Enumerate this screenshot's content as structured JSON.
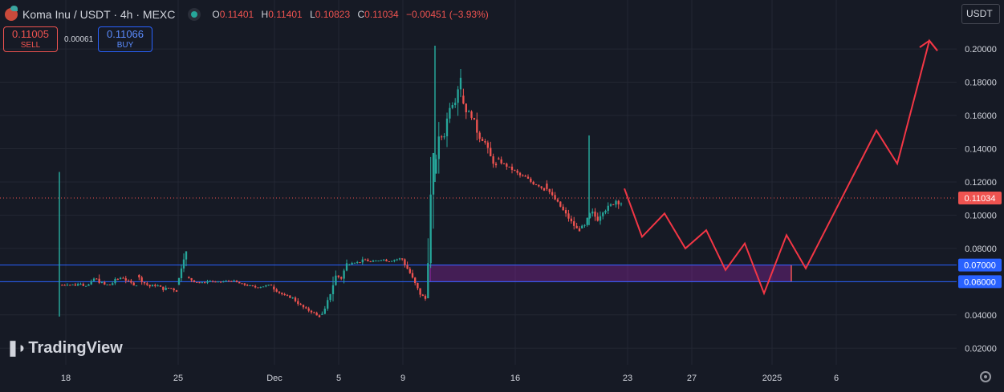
{
  "header": {
    "symbol": "Koma Inu / USDT · 4h · MEXC",
    "open_key": "O",
    "open": "0.11401",
    "high_key": "H",
    "high": "0.11401",
    "low_key": "L",
    "low": "0.10823",
    "close_key": "C",
    "close": "0.11034",
    "change": "−0.00451 (−3.93%)"
  },
  "trade": {
    "sell_price": "0.11005",
    "sell_label": "SELL",
    "spread": "0.00061",
    "buy_price": "0.11066",
    "buy_label": "BUY"
  },
  "currency": "USDT",
  "watermark": "TradingView",
  "colors": {
    "up": "#26a69a",
    "down": "#ef5350",
    "projection": "#f23645",
    "zone": "#9c27b0",
    "hline": "#2962ff",
    "bg": "#161a25"
  },
  "chart_data": {
    "type": "candlestick",
    "ylim": [
      0.01,
      0.215
    ],
    "y_ticks": [
      "0.20000",
      "0.18000",
      "0.16000",
      "0.14000",
      "0.12000",
      "0.10000",
      "0.08000",
      "0.06000",
      "0.04000",
      "0.02000"
    ],
    "y_tick_values": [
      0.2,
      0.18,
      0.16,
      0.14,
      0.12,
      0.1,
      0.08,
      0.06,
      0.04,
      0.02
    ],
    "x_ticks": [
      {
        "label": "18",
        "day": 18
      },
      {
        "label": "25",
        "day": 25
      },
      {
        "label": "Dec",
        "day": 31
      },
      {
        "label": "5",
        "day": 35
      },
      {
        "label": "9",
        "day": 39
      },
      {
        "label": "16",
        "day": 46
      },
      {
        "label": "23",
        "day": 53
      },
      {
        "label": "27",
        "day": 57
      },
      {
        "label": "2025",
        "day": 62
      },
      {
        "label": "6",
        "day": 66
      }
    ],
    "x_range_days": [
      13.9,
      73.5
    ],
    "current_price": {
      "value": 0.11034,
      "label": "0.11034"
    },
    "horizontal_lines": [
      {
        "value": 0.07,
        "label": "0.07000"
      },
      {
        "value": 0.06,
        "label": "0.06000"
      }
    ],
    "zone": {
      "from_day": 40.7,
      "to_day": 63.2,
      "low": 0.06,
      "high": 0.07
    },
    "projection": [
      [
        19.3,
        0.116
      ],
      [
        20.4,
        0.087
      ],
      [
        21.8,
        0.101
      ],
      [
        23.1,
        0.08
      ],
      [
        24.4,
        0.091
      ],
      [
        25.6,
        0.067
      ],
      [
        26.8,
        0.083
      ],
      [
        28.0,
        0.053
      ],
      [
        29.4,
        0.088
      ],
      [
        30.6,
        0.068
      ],
      [
        35.0,
        0.151
      ],
      [
        36.3,
        0.131
      ],
      [
        38.3,
        0.205
      ],
      [
        38.8,
        0.199
      ]
    ],
    "projection_day_offset": 33.5,
    "segments": [
      {
        "from": 17.6,
        "to": 22.4,
        "start": 0.058,
        "end": 0.064,
        "lo": 0.058,
        "hi": 0.09,
        "pattern": [
          0,
          0.55,
          0.3,
          0.5,
          0.2,
          0.6,
          0.35,
          0.15,
          0.4,
          0.5,
          0.2,
          0.1
        ]
      },
      {
        "from": 22.4,
        "to": 24.9,
        "start": 0.064,
        "end": 0.056,
        "lo": 0.047,
        "hi": 0.07,
        "pattern": [
          0.5,
          0.2,
          0.1,
          0.3,
          0.2,
          0.4,
          0.35
        ]
      },
      {
        "from": 24.9,
        "to": 25.5,
        "start": 0.06,
        "end": 0.075,
        "lo": 0.058,
        "hi": 0.078,
        "pattern": [
          0,
          0.6,
          1
        ]
      },
      {
        "from": 25.5,
        "to": 30.8,
        "start": 0.062,
        "end": 0.058,
        "lo": 0.05,
        "hi": 0.066,
        "pattern": [
          0.6,
          0.3,
          0.2,
          0.45,
          0.35,
          0.5,
          0.6,
          0.4,
          0.3,
          0.2,
          0.35,
          0.5
        ]
      },
      {
        "from": 30.8,
        "to": 33.8,
        "start": 0.057,
        "end": 0.042,
        "lo": 0.039,
        "hi": 0.06,
        "pattern": [
          0.5,
          0.4,
          0.35,
          0.5,
          0.3,
          0.2,
          0.25,
          0.1
        ]
      },
      {
        "from": 33.8,
        "to": 35.5,
        "start": 0.042,
        "end": 0.065,
        "lo": 0.04,
        "hi": 0.082,
        "pattern": [
          0,
          0.3,
          0.6,
          0.9,
          0.6,
          0.8
        ]
      },
      {
        "from": 35.5,
        "to": 38.8,
        "start": 0.07,
        "end": 0.073,
        "lo": 0.064,
        "hi": 0.082,
        "pattern": [
          0.5,
          0.7,
          0.6,
          0.8,
          0.55,
          0.6,
          0.7,
          0.5,
          0.55,
          0.6
        ]
      },
      {
        "from": 38.8,
        "to": 40.4,
        "start": 0.072,
        "end": 0.052,
        "lo": 0.048,
        "hi": 0.074,
        "pattern": [
          0.9,
          0.7,
          0.6,
          0.4,
          0.2,
          0.3
        ]
      },
      {
        "from": 40.4,
        "to": 40.9,
        "start": 0.055,
        "end": 0.13,
        "lo": 0.05,
        "hi": 0.135,
        "pattern": [
          0,
          0.5,
          1
        ]
      },
      {
        "from": 40.9,
        "to": 42.6,
        "start": 0.135,
        "end": 0.17,
        "lo": 0.125,
        "hi": 0.202,
        "pattern": [
          0.2,
          0.6,
          0.5,
          0.8,
          0.7,
          0.9
        ]
      },
      {
        "from": 42.6,
        "to": 44.8,
        "start": 0.165,
        "end": 0.135,
        "lo": 0.128,
        "hi": 0.179,
        "pattern": [
          0.8,
          0.6,
          0.7,
          0.4,
          0.5,
          0.3,
          0.25
        ]
      },
      {
        "from": 44.8,
        "to": 47.8,
        "start": 0.132,
        "end": 0.118,
        "lo": 0.112,
        "hi": 0.136,
        "pattern": [
          0.7,
          0.6,
          0.55,
          0.5,
          0.4,
          0.45,
          0.3,
          0.35,
          0.25
        ]
      },
      {
        "from": 47.8,
        "to": 50.0,
        "start": 0.115,
        "end": 0.095,
        "lo": 0.091,
        "hi": 0.121,
        "pattern": [
          0.8,
          0.6,
          0.5,
          0.35,
          0.2,
          0.1
        ]
      },
      {
        "from": 50.0,
        "to": 52.6,
        "start": 0.095,
        "end": 0.11,
        "lo": 0.092,
        "hi": 0.148,
        "pattern": [
          0,
          0.4,
          0.6,
          0.35,
          0.5,
          0.45,
          0.55,
          0.4
        ]
      }
    ],
    "spikes": [
      {
        "day": 17.6,
        "low": 0.039,
        "high": 0.126
      },
      {
        "day": 41.0,
        "low": 0.12,
        "high": 0.202
      },
      {
        "day": 50.6,
        "low": 0.094,
        "high": 0.148
      }
    ]
  }
}
